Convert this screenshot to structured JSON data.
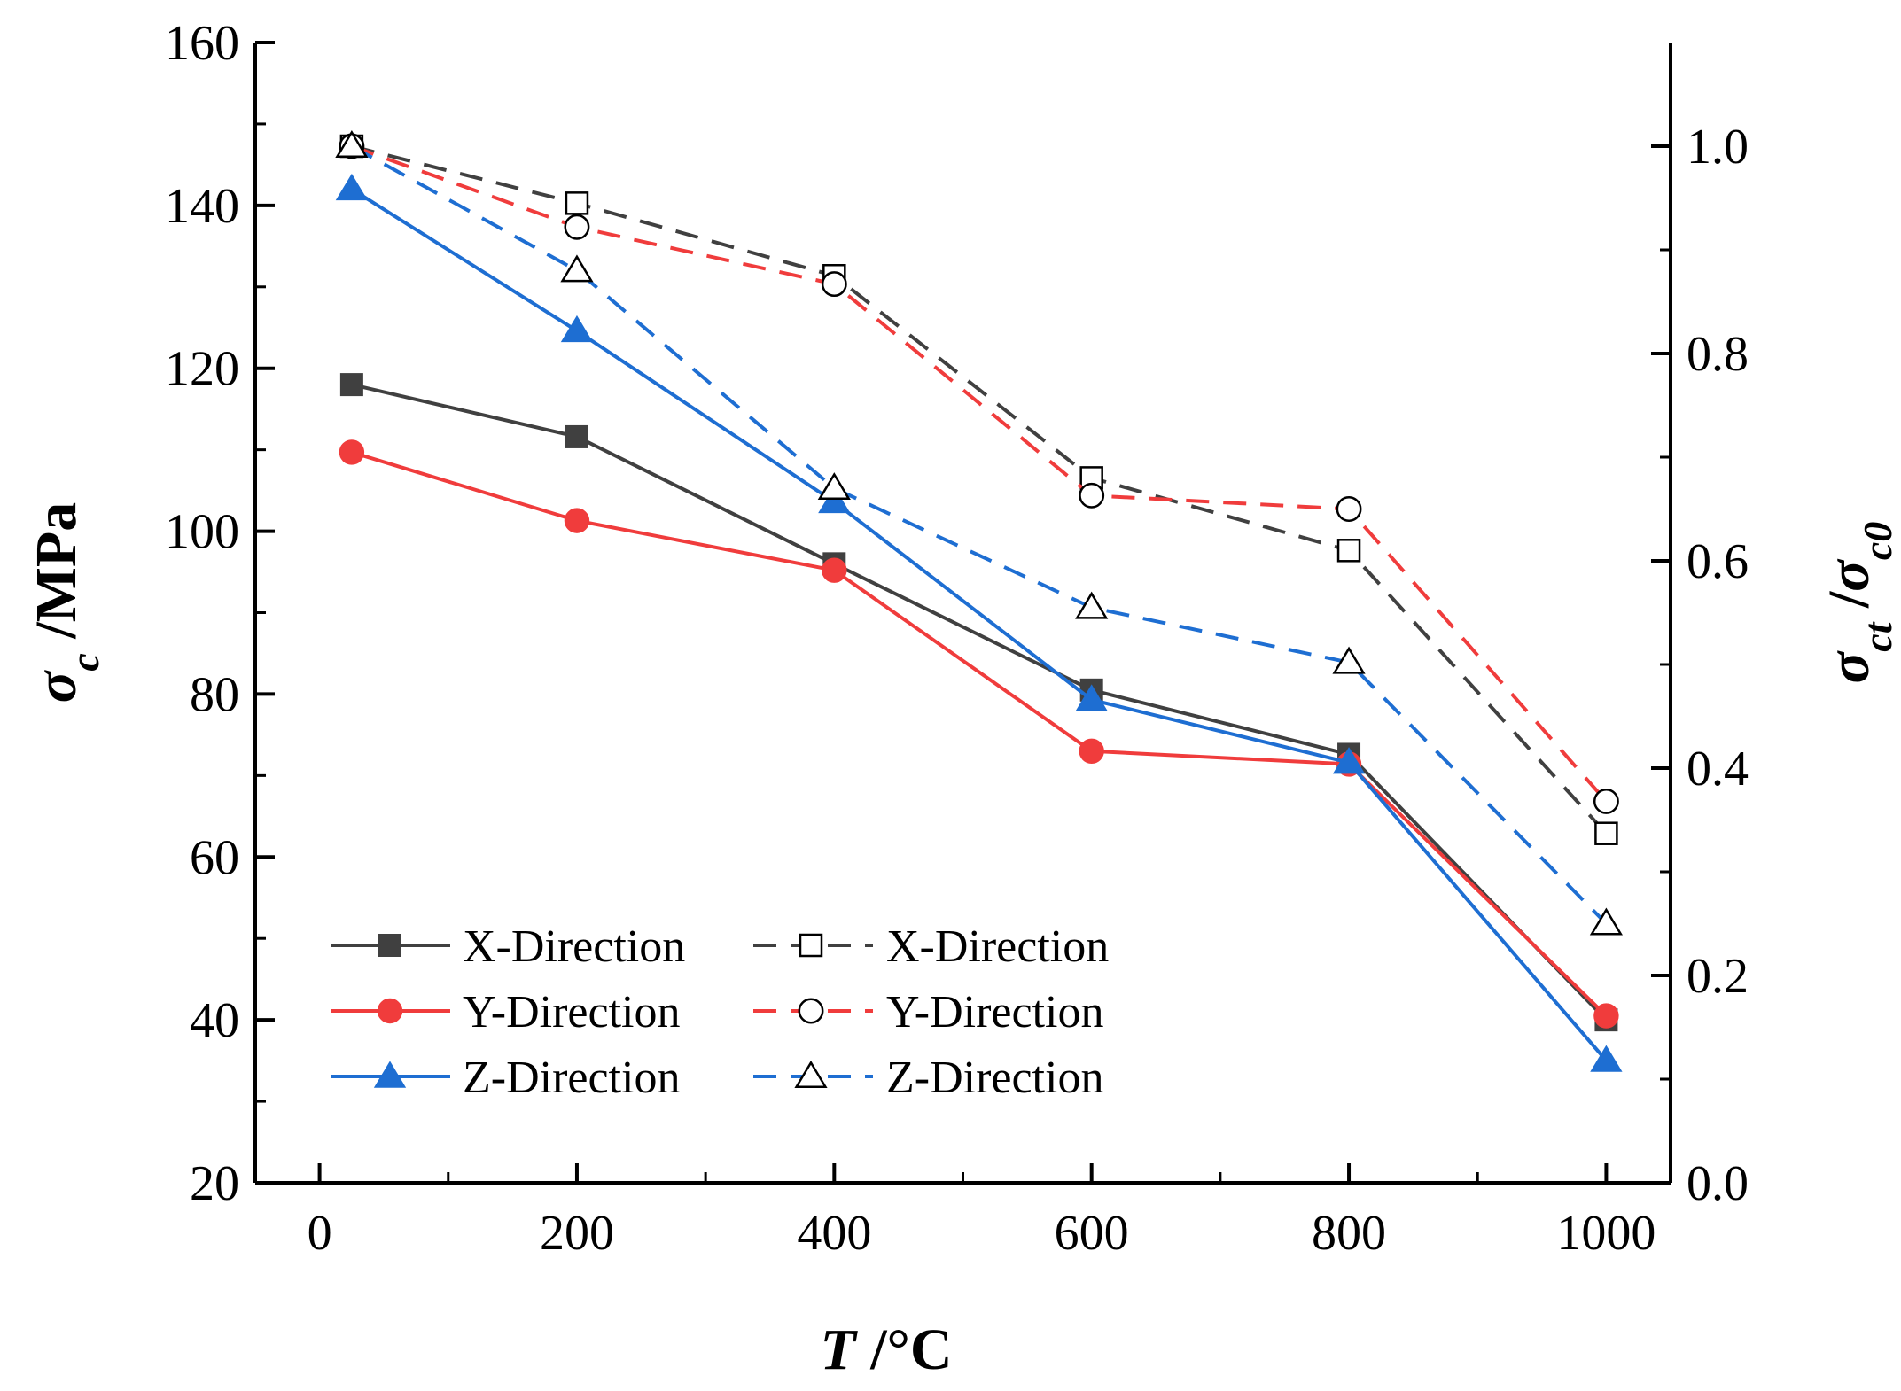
{
  "chart_data": {
    "type": "line",
    "x": [
      25,
      200,
      400,
      600,
      800,
      1000
    ],
    "xlabel": {
      "var": "T",
      "unit": " /°C"
    },
    "ylabel_left": {
      "var": "σ",
      "sub": "c",
      "unit": " /MPa"
    },
    "ylabel_right": {
      "var1": "σ",
      "sub1": "ct",
      "sep": " /",
      "var2": "σ",
      "sub2": "c0"
    },
    "xlim": [
      -50,
      1050
    ],
    "ylim_left": [
      20,
      160
    ],
    "ylim_right": [
      0.0,
      1.1
    ],
    "xticks": [
      0,
      200,
      400,
      600,
      800,
      1000
    ],
    "xtick_labels": [
      "0",
      "200",
      "400",
      "600",
      "800",
      "1000"
    ],
    "yticks_left": [
      20,
      40,
      60,
      80,
      100,
      120,
      140,
      160
    ],
    "ytick_labels_left": [
      "20",
      "40",
      "60",
      "80",
      "100",
      "120",
      "140",
      "160"
    ],
    "yticks_right": [
      0.0,
      0.2,
      0.4,
      0.6,
      0.8,
      1.0
    ],
    "ytick_labels_right": [
      "0.0",
      "0.2",
      "0.4",
      "0.6",
      "0.8",
      "1.0"
    ],
    "grid": false,
    "legend_position": "bottom-left",
    "series": [
      {
        "name": "X-Direction",
        "axis": "left",
        "style": "solid",
        "marker": "square",
        "filled": true,
        "color": "#404040",
        "values": [
          118,
          111.6,
          96,
          80.5,
          72.6,
          40
        ]
      },
      {
        "name": "Y-Direction",
        "axis": "left",
        "style": "solid",
        "marker": "circle",
        "filled": true,
        "color": "#f03c3c",
        "values": [
          109.7,
          101.3,
          95.2,
          73,
          71.4,
          40.5
        ]
      },
      {
        "name": "Z-Direction",
        "axis": "left",
        "style": "solid",
        "marker": "triangle",
        "filled": true,
        "color": "#1e6ed2",
        "values": [
          142,
          124.6,
          103.6,
          79.3,
          71.6,
          35
        ]
      },
      {
        "name": "X-Direction",
        "axis": "right",
        "style": "dashed",
        "marker": "square",
        "filled": false,
        "color": "#404040",
        "values": [
          1.0,
          0.945,
          0.875,
          0.68,
          0.61,
          0.337
        ]
      },
      {
        "name": "Y-Direction",
        "axis": "right",
        "style": "dashed",
        "marker": "circle",
        "filled": false,
        "color": "#f03c3c",
        "values": [
          1.0,
          0.922,
          0.867,
          0.663,
          0.65,
          0.368
        ]
      },
      {
        "name": "Z-Direction",
        "axis": "right",
        "style": "dashed",
        "marker": "triangle",
        "filled": false,
        "color": "#1e6ed2",
        "values": [
          1.0,
          0.88,
          0.67,
          0.555,
          0.502,
          0.25
        ]
      }
    ]
  }
}
